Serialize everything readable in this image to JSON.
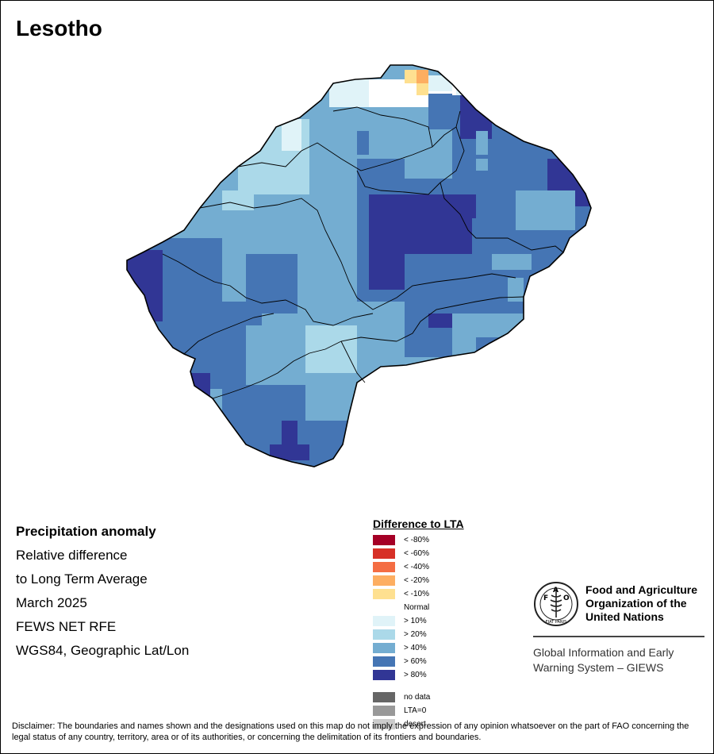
{
  "title": "Lesotho",
  "info": {
    "heading": "Precipitation anomaly",
    "lines": [
      "Relative difference",
      "to Long Term Average",
      "March 2025",
      "FEWS NET RFE",
      "WGS84, Geographic Lat/Lon"
    ]
  },
  "legend": {
    "title": "Difference to LTA",
    "items": [
      {
        "label": "< -80%",
        "color": "#a50026"
      },
      {
        "label": "< -60%",
        "color": "#d73027"
      },
      {
        "label": "< -40%",
        "color": "#f46d43"
      },
      {
        "label": "< -20%",
        "color": "#fdae61"
      },
      {
        "label": "< -10%",
        "color": "#fee090"
      },
      {
        "label": "Normal",
        "color": "#ffffff"
      },
      {
        "label": "> 10%",
        "color": "#e0f3f8"
      },
      {
        "label": "> 20%",
        "color": "#abd9e9"
      },
      {
        "label": "> 40%",
        "color": "#74add1"
      },
      {
        "label": "> 60%",
        "color": "#4575b4"
      },
      {
        "label": "> 80%",
        "color": "#313695"
      }
    ],
    "extra": [
      {
        "label": "no data",
        "color": "#666666"
      },
      {
        "label": "LTA=0",
        "color": "#999999"
      },
      {
        "label": "desert",
        "color": "#cccccc"
      }
    ]
  },
  "fao": {
    "name_lines": [
      "Food and Agriculture",
      "Organization of the",
      "United Nations"
    ],
    "logo_text": "FIAT PANIS",
    "giews_lines": [
      "Global Information and Early",
      "Warning System – GIEWS"
    ]
  },
  "disclaimer": "Disclaimer: The boundaries and names shown and the designations used on this map do not imply the expression of any opinion whatsoever on the part of FAO concerning the legal status of any country, territory, area or of its authorities, or concerning the delimitation of its frontiers and boundaries."
}
